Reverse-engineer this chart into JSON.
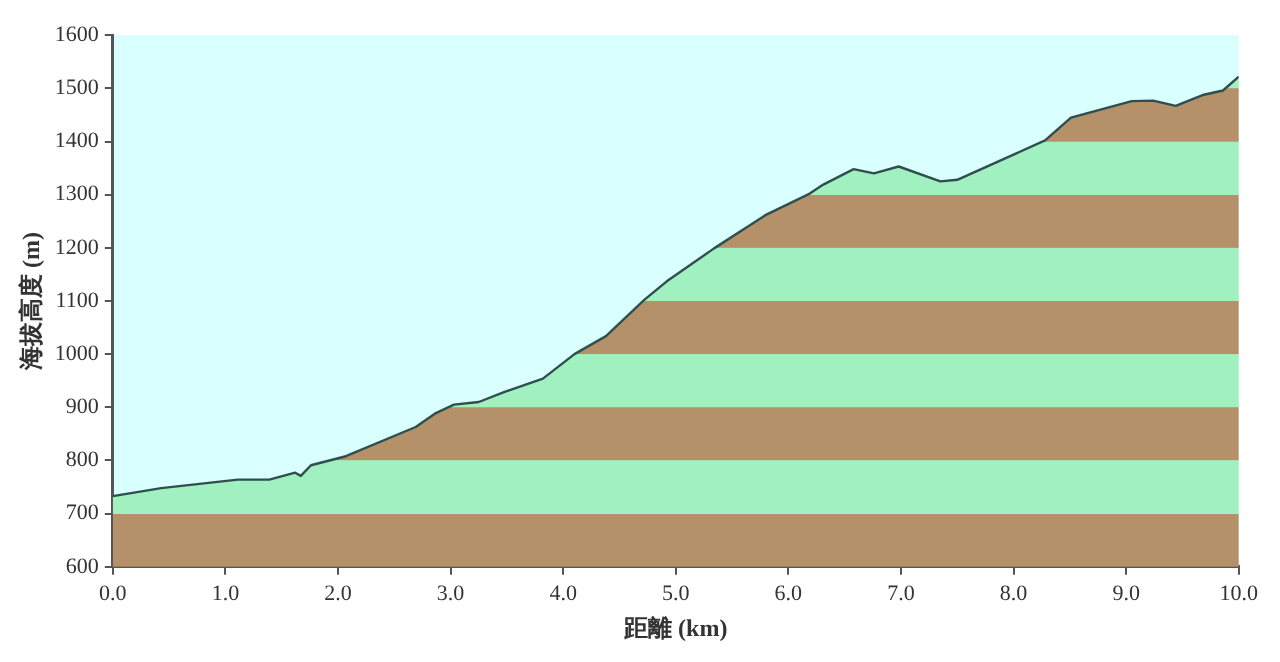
{
  "chart_data": {
    "type": "area",
    "xlabel": "距離 (km)",
    "ylabel": "海拔高度 (m)",
    "x": [
      0,
      0.43,
      1.11,
      1.39,
      1.62,
      1.67,
      1.76,
      2.07,
      2.69,
      2.86,
      3.03,
      3.25,
      3.48,
      3.82,
      4.1,
      4.38,
      4.72,
      4.92,
      5.34,
      5.8,
      6.19,
      6.31,
      6.58,
      6.76,
      6.98,
      7.35,
      7.5,
      8.28,
      8.51,
      9.05,
      9.24,
      9.44,
      9.69,
      9.86,
      10
    ],
    "series": [
      {
        "color": "#2f4f4f",
        "values": [
          733,
          748,
          764,
          764,
          777,
          771,
          791,
          808,
          863,
          888,
          905,
          910,
          929,
          954,
          1000,
          1034,
          1102,
          1137,
          1199,
          1262,
          1302,
          1319,
          1348,
          1340,
          1353,
          1325,
          1328,
          1402,
          1445,
          1476,
          1477,
          1467,
          1488,
          1496,
          1522
        ]
      }
    ],
    "bands": [
      {
        "axis": "y",
        "from": 600,
        "to": 700,
        "color": "#b5916a"
      },
      {
        "axis": "y",
        "from": 700,
        "to": 800,
        "color": "#a0f0c0"
      },
      {
        "axis": "y",
        "from": 800,
        "to": 900,
        "color": "#b5916a"
      },
      {
        "axis": "y",
        "from": 900,
        "to": 1000,
        "color": "#a0f0c0"
      },
      {
        "axis": "y",
        "from": 1000,
        "to": 1100,
        "color": "#b5916a"
      },
      {
        "axis": "y",
        "from": 1100,
        "to": 1200,
        "color": "#a0f0c0"
      },
      {
        "axis": "y",
        "from": 1200,
        "to": 1300,
        "color": "#b5916a"
      },
      {
        "axis": "y",
        "from": 1300,
        "to": 1400,
        "color": "#a0f0c0"
      },
      {
        "axis": "y",
        "from": 1400,
        "to": 1500,
        "color": "#b5916a"
      },
      {
        "axis": "y",
        "from": 1500,
        "to": 1600,
        "color": "#a0f0c0"
      }
    ],
    "xlim": [
      0,
      10
    ],
    "ylim": [
      600,
      1600
    ],
    "xticks": [
      {
        "value": 0,
        "label": "0.0"
      },
      {
        "value": 1,
        "label": "1.0"
      },
      {
        "value": 2,
        "label": "2.0"
      },
      {
        "value": 3,
        "label": "3.0"
      },
      {
        "value": 4,
        "label": "4.0"
      },
      {
        "value": 5,
        "label": "5.0"
      },
      {
        "value": 6,
        "label": "6.0"
      },
      {
        "value": 7,
        "label": "7.0"
      },
      {
        "value": 8,
        "label": "8.0"
      },
      {
        "value": 9,
        "label": "9.0"
      },
      {
        "value": 10,
        "label": "10.0"
      }
    ],
    "yticks": [
      600,
      700,
      800,
      900,
      1000,
      1100,
      1200,
      1300,
      1400,
      1500,
      1600
    ],
    "grid": false,
    "legend": false
  }
}
